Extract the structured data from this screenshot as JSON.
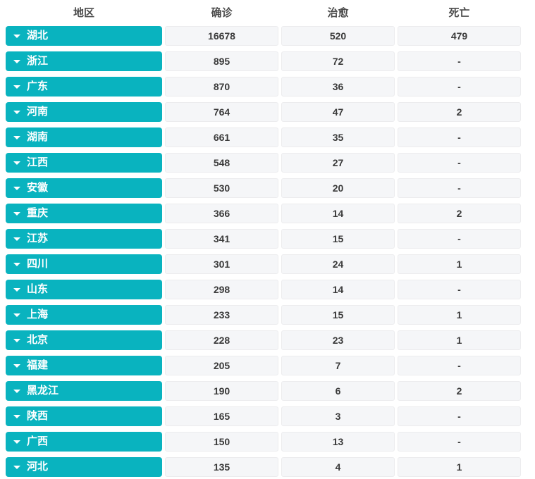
{
  "colors": {
    "accent_teal": "#09b3bf",
    "cell_background": "#f5f6f8",
    "cell_border": "#ececee",
    "header_text": "#4b4b4b",
    "value_text": "#3a3a3a",
    "button_text": "#ffffff"
  },
  "icons": {
    "region_button_icon": "chevron-down-icon"
  },
  "table": {
    "headers": {
      "region": "地区",
      "confirmed": "确诊",
      "cured": "治愈",
      "deaths": "死亡"
    },
    "rows": [
      {
        "region": "湖北",
        "confirmed": "16678",
        "cured": "520",
        "deaths": "479"
      },
      {
        "region": "浙江",
        "confirmed": "895",
        "cured": "72",
        "deaths": "-"
      },
      {
        "region": "广东",
        "confirmed": "870",
        "cured": "36",
        "deaths": "-"
      },
      {
        "region": "河南",
        "confirmed": "764",
        "cured": "47",
        "deaths": "2"
      },
      {
        "region": "湖南",
        "confirmed": "661",
        "cured": "35",
        "deaths": "-"
      },
      {
        "region": "江西",
        "confirmed": "548",
        "cured": "27",
        "deaths": "-"
      },
      {
        "region": "安徽",
        "confirmed": "530",
        "cured": "20",
        "deaths": "-"
      },
      {
        "region": "重庆",
        "confirmed": "366",
        "cured": "14",
        "deaths": "2"
      },
      {
        "region": "江苏",
        "confirmed": "341",
        "cured": "15",
        "deaths": "-"
      },
      {
        "region": "四川",
        "confirmed": "301",
        "cured": "24",
        "deaths": "1"
      },
      {
        "region": "山东",
        "confirmed": "298",
        "cured": "14",
        "deaths": "-"
      },
      {
        "region": "上海",
        "confirmed": "233",
        "cured": "15",
        "deaths": "1"
      },
      {
        "region": "北京",
        "confirmed": "228",
        "cured": "23",
        "deaths": "1"
      },
      {
        "region": "福建",
        "confirmed": "205",
        "cured": "7",
        "deaths": "-"
      },
      {
        "region": "黑龙江",
        "confirmed": "190",
        "cured": "6",
        "deaths": "2"
      },
      {
        "region": "陕西",
        "confirmed": "165",
        "cured": "3",
        "deaths": "-"
      },
      {
        "region": "广西",
        "confirmed": "150",
        "cured": "13",
        "deaths": "-"
      },
      {
        "region": "河北",
        "confirmed": "135",
        "cured": "4",
        "deaths": "1"
      }
    ]
  }
}
